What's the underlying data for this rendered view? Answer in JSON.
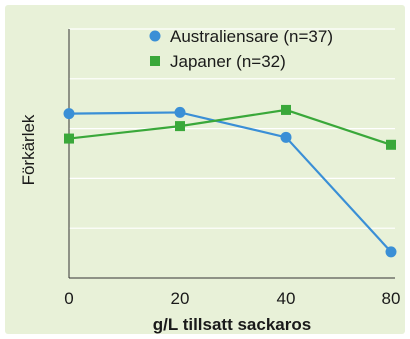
{
  "chart_data": {
    "type": "line",
    "title": "",
    "xlabel": "g/L tillsatt sackaros",
    "ylabel": "Förkärlek",
    "categories": [
      "0",
      "20",
      "40",
      "80"
    ],
    "y_ticks_shown": false,
    "grid": "horizontal",
    "legend_position": "top-right",
    "series": [
      {
        "name": "Australiensare (n=37)",
        "marker": "circle",
        "color": "#3a8fd6",
        "values": [
          0.66,
          0.665,
          0.565,
          0.105
        ]
      },
      {
        "name": "Japaner (n=32)",
        "marker": "square",
        "color": "#3aa83a",
        "values": [
          0.56,
          0.61,
          0.675,
          0.535
        ]
      }
    ],
    "ylim": [
      0,
      1
    ]
  }
}
